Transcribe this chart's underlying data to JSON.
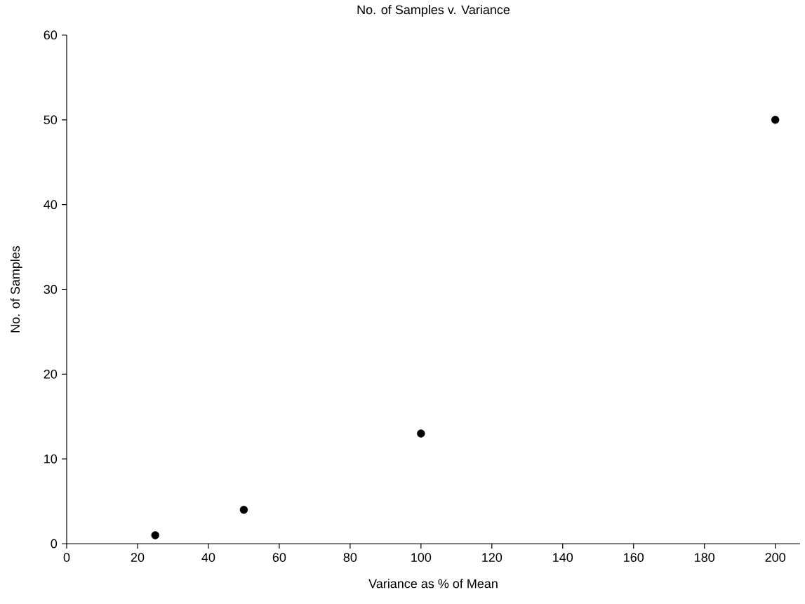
{
  "chart_data": {
    "type": "scatter",
    "title": "No. of Samples v. Variance",
    "xlabel": "Variance as % of Mean",
    "ylabel": "No. of Samples",
    "x": [
      25,
      50,
      100,
      200
    ],
    "values": [
      1,
      4,
      13,
      50
    ],
    "color": "#000000",
    "marker": "circle",
    "xlim": [
      0,
      207
    ],
    "ylim": [
      0,
      60
    ],
    "xticks": [
      0,
      20,
      40,
      60,
      80,
      100,
      120,
      140,
      160,
      180,
      200
    ],
    "yticks": [
      0,
      10,
      20,
      30,
      40,
      50,
      60
    ]
  }
}
